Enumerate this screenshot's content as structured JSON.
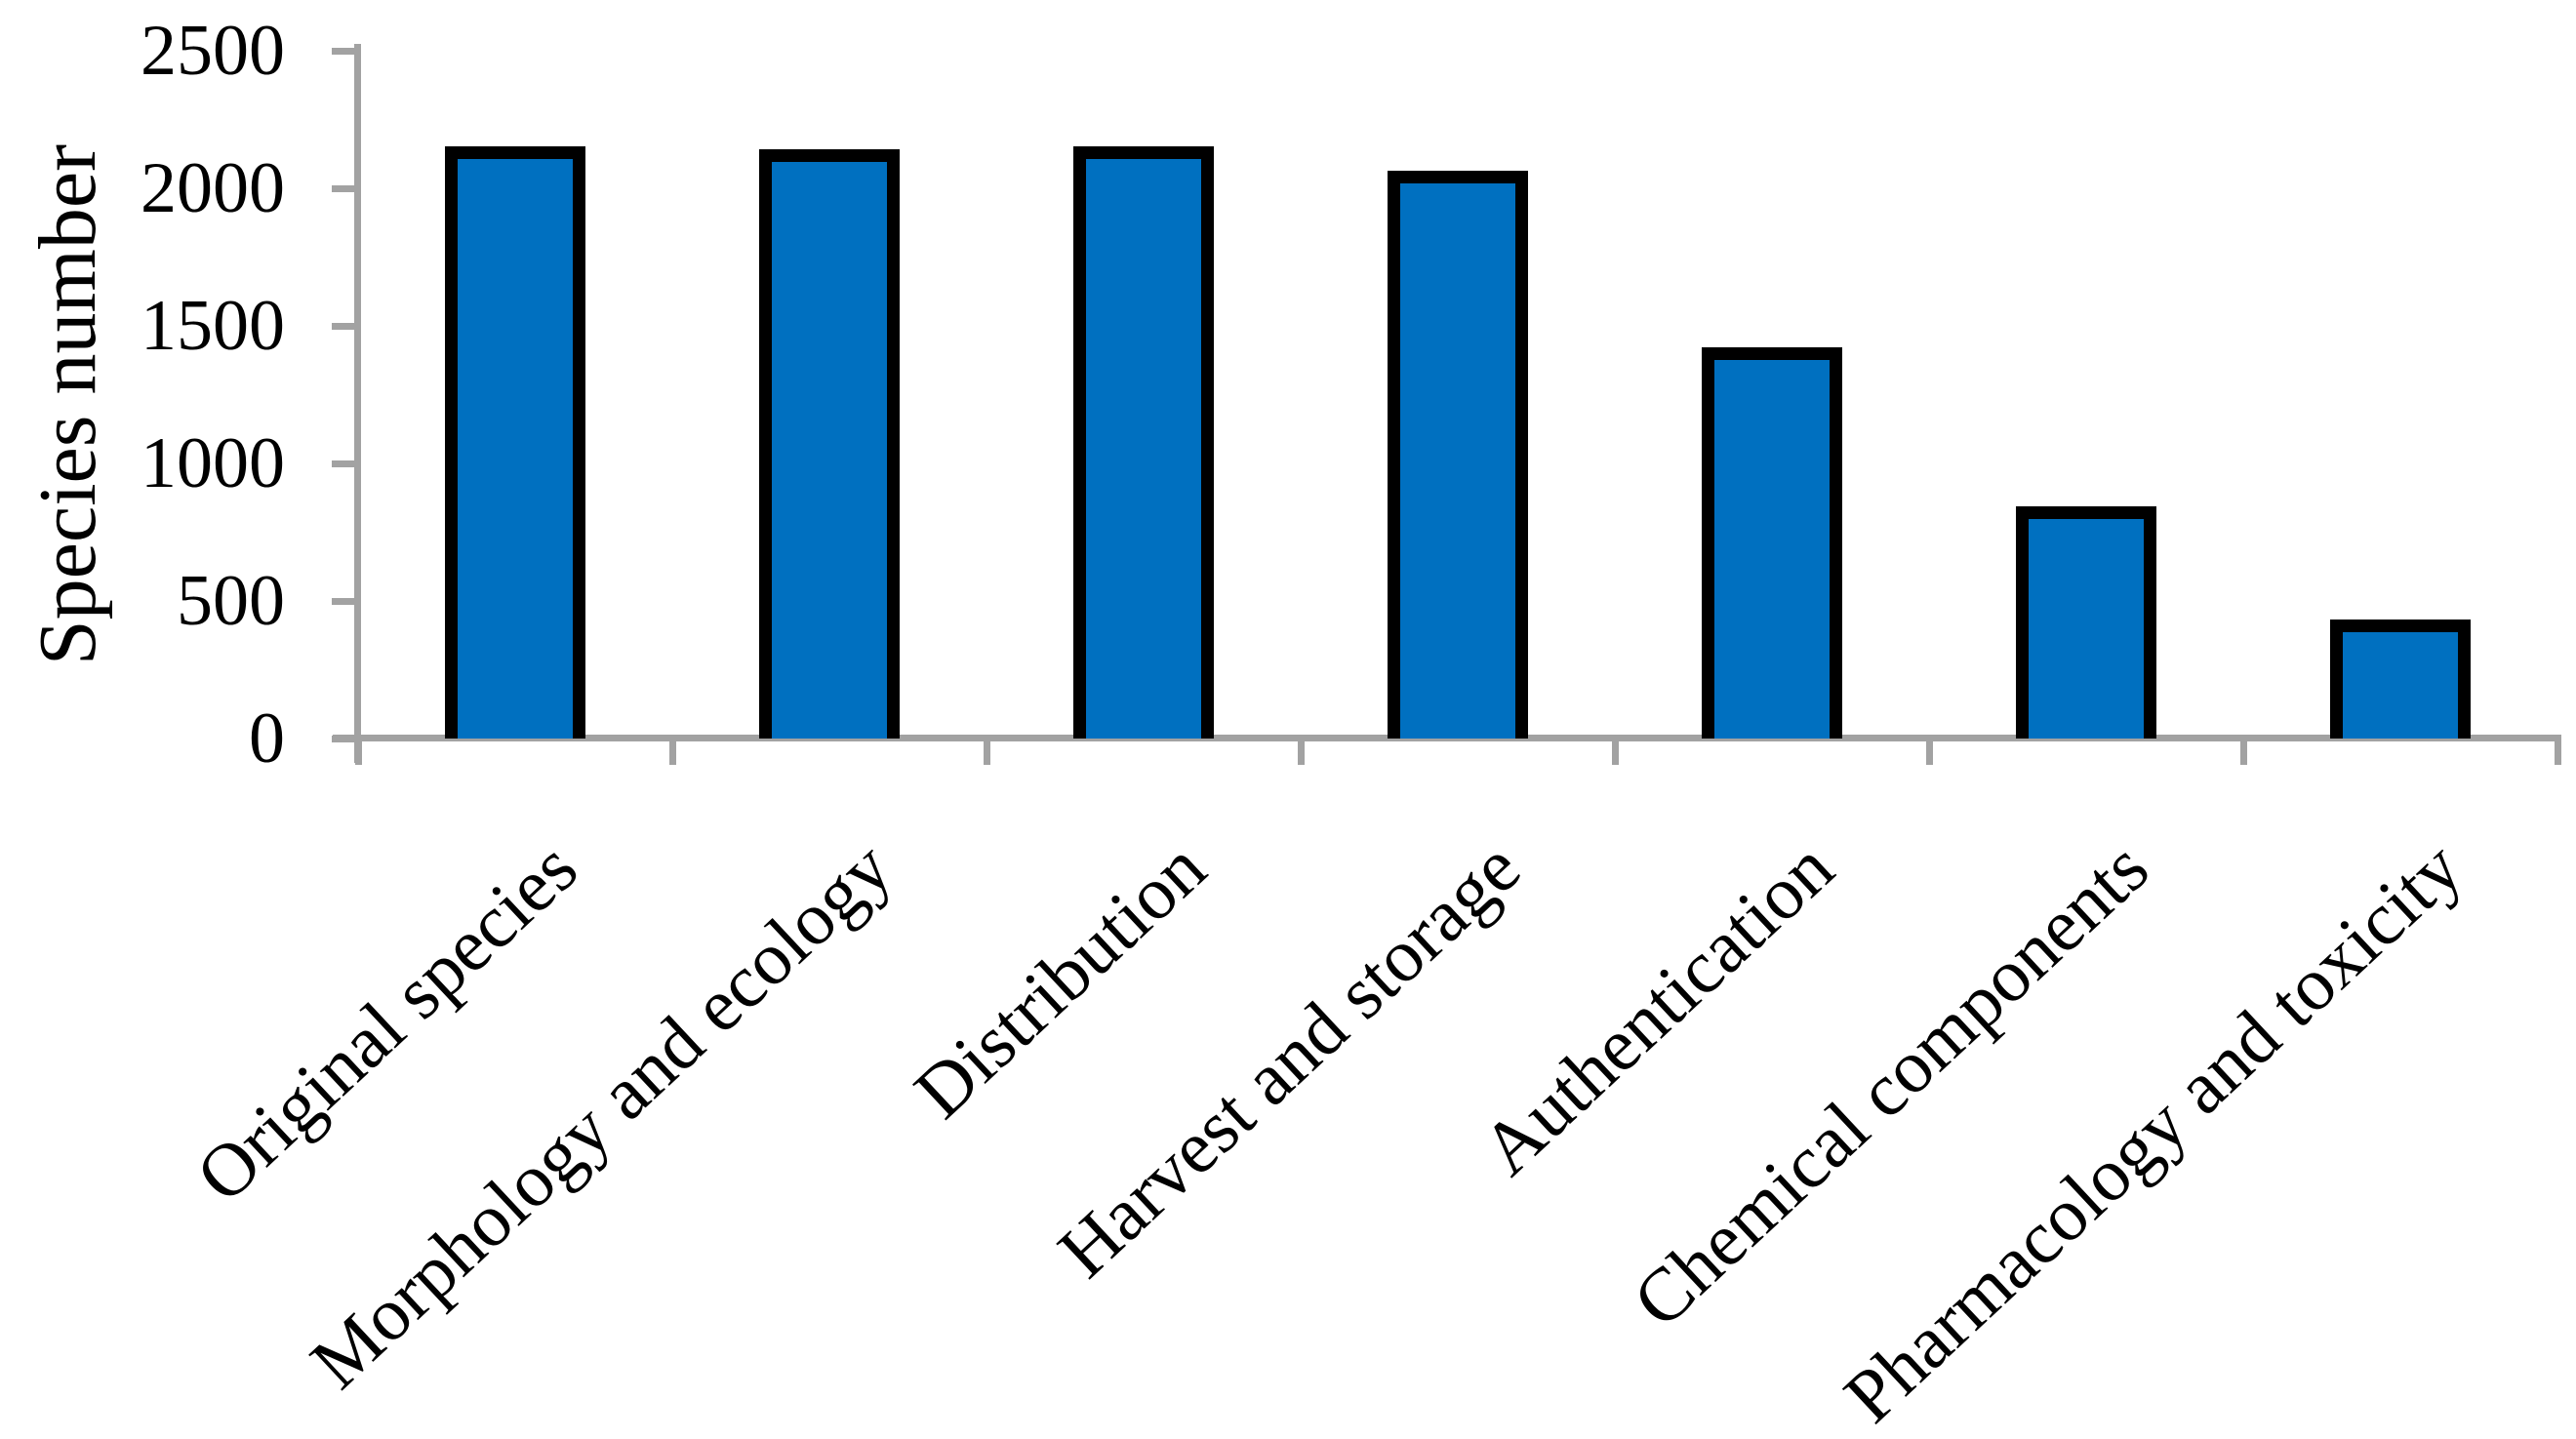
{
  "chart_data": {
    "type": "bar",
    "title": "",
    "ylabel": "Species number",
    "xlabel": "",
    "categories": [
      "Original species",
      "Morphology and ecology",
      "Distribution",
      "Harvest and storage",
      "Authentication",
      "Chemical components",
      "Pharmacology and toxicity"
    ],
    "values": [
      2130,
      2120,
      2130,
      2040,
      1400,
      820,
      410
    ],
    "y_ticks": [
      0,
      500,
      1000,
      1500,
      2000,
      2500
    ],
    "ylim": [
      0,
      2500
    ],
    "grid": false,
    "legend": false,
    "bar_fill_color": "#0070C0",
    "bar_border_color": "#000000",
    "axis_color": "#a2a2a2",
    "text_color": "#000000"
  }
}
